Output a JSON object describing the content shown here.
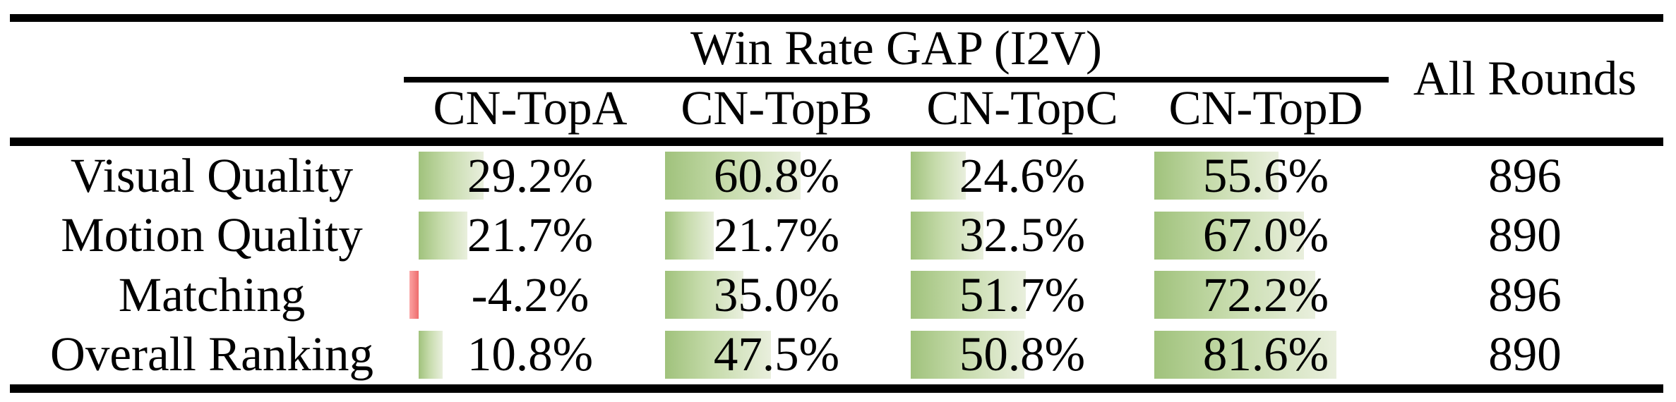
{
  "figure": {
    "group_header": "Win Rate GAP (I2V)",
    "all_rounds_header": "All Rounds",
    "columns": [
      "CN-TopA",
      "CN-TopB",
      "CN-TopC",
      "CN-TopD"
    ],
    "rows": [
      {
        "label": "Visual Quality",
        "values": [
          "29.2%",
          "60.8%",
          "24.6%",
          "55.6%"
        ],
        "all_rounds": "896"
      },
      {
        "label": "Motion Quality",
        "values": [
          "21.7%",
          "21.7%",
          "32.5%",
          "67.0%"
        ],
        "all_rounds": "890"
      },
      {
        "label": "Matching",
        "values": [
          "-4.2%",
          "35.0%",
          "51.7%",
          "72.2%"
        ],
        "all_rounds": "896"
      },
      {
        "label": "Overall Ranking",
        "values": [
          "10.8%",
          "47.5%",
          "50.8%",
          "81.6%"
        ],
        "all_rounds": "890"
      }
    ]
  },
  "chart_data": {
    "type": "table",
    "title": "Win Rate GAP (I2V)",
    "columns": [
      "CN-TopA",
      "CN-TopB",
      "CN-TopC",
      "CN-TopD",
      "All Rounds"
    ],
    "row_labels": [
      "Visual Quality",
      "Motion Quality",
      "Matching",
      "Overall Ranking"
    ],
    "series": [
      {
        "name": "CN-TopA",
        "values": [
          29.2,
          21.7,
          -4.2,
          10.8
        ]
      },
      {
        "name": "CN-TopB",
        "values": [
          60.8,
          21.7,
          35.0,
          47.5
        ]
      },
      {
        "name": "CN-TopC",
        "values": [
          24.6,
          32.5,
          51.7,
          50.8
        ]
      },
      {
        "name": "CN-TopD",
        "values": [
          55.6,
          67.0,
          72.2,
          81.6
        ]
      }
    ],
    "all_rounds": [
      896,
      890,
      896,
      890
    ],
    "value_unit": "%",
    "bar_axis_range": [
      0,
      100
    ],
    "layout_hints": "in-cell data bars, left-aligned, width proportional to percent; positive bars green gradient fading left-to-right, negative bars red extending left of zero; booktabs-style black rules top/middle/bottom, thin rule under group header spanning the four CN columns only"
  },
  "colors": {
    "bar_green_start": "#a0c27c",
    "bar_green_end": "#e9efdd",
    "bar_red_start": "#fba3a3",
    "bar_red_end": "#ee6c6c",
    "text": "#000000",
    "rule": "#000000",
    "background": "#ffffff"
  }
}
